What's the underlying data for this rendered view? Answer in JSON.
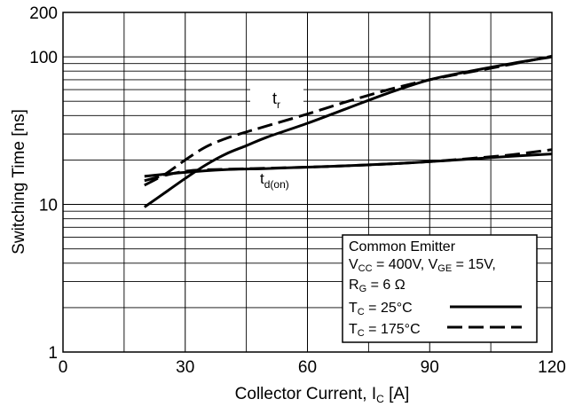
{
  "chart_data": {
    "type": "line",
    "title": "",
    "xlabel": {
      "main": "Collector Current, I",
      "sub": "C",
      "tail": " [A]"
    },
    "ylabel": "Switching Time [ns]",
    "x_scale": "linear",
    "y_scale": "log",
    "xlim": [
      0,
      120
    ],
    "ylim": [
      1,
      200
    ],
    "x_ticks": [
      0,
      30,
      60,
      90,
      120
    ],
    "x_tick_labels": [
      "0",
      "30",
      "60",
      "90",
      "120"
    ],
    "y_ticks": [
      1,
      10,
      100,
      200
    ],
    "y_tick_labels": [
      "1",
      "10",
      "100",
      "200"
    ],
    "grid": true,
    "series": [
      {
        "curve": "tr",
        "style": "solid",
        "x": [
          20,
          25,
          30,
          35,
          40,
          45,
          50,
          60,
          70,
          80,
          90,
          100,
          110,
          120
        ],
        "y": [
          9.6,
          12.0,
          15.0,
          18.5,
          22.0,
          25.0,
          28.5,
          35.5,
          45.0,
          57.0,
          70.0,
          80.0,
          90.0,
          100.0
        ]
      },
      {
        "curve": "tr",
        "style": "dashed",
        "x": [
          20,
          25,
          30,
          35,
          40,
          45,
          50,
          60,
          70,
          80,
          90,
          100,
          110,
          120
        ],
        "y": [
          13.5,
          16.0,
          20.0,
          24.5,
          28.0,
          31.0,
          34.0,
          41.0,
          50.0,
          60.0,
          70.0,
          79.0,
          89.0,
          101.0
        ]
      },
      {
        "curve": "td(on)",
        "style": "solid",
        "x": [
          20,
          30,
          40,
          50,
          60,
          70,
          80,
          90,
          100,
          110,
          120
        ],
        "y": [
          15.5,
          16.5,
          17.2,
          17.5,
          17.9,
          18.3,
          18.8,
          19.5,
          20.3,
          21.2,
          22.0
        ]
      },
      {
        "curve": "td(on)",
        "style": "dashed",
        "x": [
          20,
          30,
          40,
          50,
          60,
          70,
          80,
          90,
          100,
          110,
          120
        ],
        "y": [
          14.5,
          16.8,
          17.3,
          17.6,
          17.9,
          18.3,
          18.8,
          19.5,
          20.5,
          21.7,
          23.5
        ]
      }
    ],
    "annotations": [
      {
        "id": "tr",
        "main": "t",
        "sub": "r"
      },
      {
        "id": "tdon",
        "main": "t",
        "sub": "d(on)"
      }
    ],
    "legend": {
      "position": "bottom-right",
      "line1": "Common Emitter",
      "line2": {
        "a": "V",
        "a_sub": "CC",
        "b": " = 400V, V",
        "b_sub": "GE",
        "c": " = 15V,"
      },
      "line3": {
        "a": "R",
        "a_sub": "G",
        "b": " = 6 Ω"
      },
      "entries": [
        {
          "style": "solid",
          "a": "T",
          "a_sub": "C",
          "b": " = 25°C"
        },
        {
          "style": "dashed",
          "a": "T",
          "a_sub": "C",
          "b": " = 175°C"
        }
      ]
    }
  }
}
